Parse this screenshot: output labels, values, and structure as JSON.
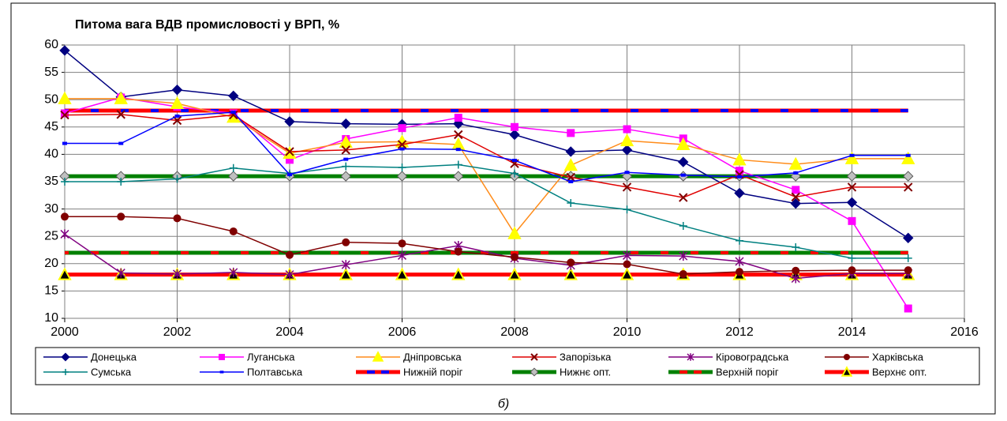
{
  "chart_data": {
    "type": "line",
    "title": "Питома вага  ВДВ  промисловості у ВРП, %",
    "caption": "б)",
    "x": [
      2000,
      2001,
      2002,
      2003,
      2004,
      2005,
      2006,
      2007,
      2008,
      2009,
      2010,
      2011,
      2012,
      2013,
      2014,
      2015
    ],
    "xlim": [
      2000,
      2016
    ],
    "xticks": [
      2000,
      2002,
      2004,
      2006,
      2008,
      2010,
      2012,
      2014,
      2016
    ],
    "ylim": [
      10,
      60
    ],
    "yticks": [
      10,
      15,
      20,
      25,
      30,
      35,
      40,
      45,
      50,
      55,
      60
    ],
    "grid": true,
    "legend": "bottom",
    "series": [
      {
        "name": "Донецька",
        "color": "#000080",
        "marker": "diamond",
        "values": [
          59,
          50.5,
          51.8,
          50.7,
          46,
          45.6,
          45.5,
          45.6,
          43.6,
          40.5,
          40.8,
          38.6,
          32.9,
          31,
          31.2,
          24.7
        ]
      },
      {
        "name": "Луганська",
        "color": "#ff00ff",
        "marker": "square",
        "values": [
          47.5,
          50.4,
          48.7,
          47.5,
          39,
          42.8,
          44.8,
          46.7,
          45,
          43.9,
          44.6,
          42.9,
          37,
          33.5,
          27.8,
          11.8
        ]
      },
      {
        "name": "Дніпровська",
        "color": "#ff8c1a",
        "marker": "triangle",
        "marker_color": "#ffff00",
        "values": [
          50.2,
          50.2,
          49.3,
          46.8,
          40.2,
          42.2,
          42.3,
          41.8,
          25.5,
          38,
          42.5,
          41.8,
          39,
          38.2,
          39.2,
          39.2
        ]
      },
      {
        "name": "Запорізька",
        "color": "#e00000",
        "marker": "x",
        "marker_color": "#800000",
        "values": [
          47.2,
          47.3,
          46.2,
          47.2,
          40.5,
          40.8,
          41.8,
          43.6,
          38.3,
          35.8,
          34,
          32.1,
          36.3,
          32.2,
          34,
          34
        ]
      },
      {
        "name": "Кіровоградська",
        "color": "#800080",
        "marker": "star",
        "values": [
          25.4,
          18.3,
          18.1,
          18.4,
          18,
          19.8,
          21.5,
          23.3,
          21,
          19.7,
          21.5,
          21.4,
          20.4,
          17.3,
          18.2,
          18.2
        ]
      },
      {
        "name": "Харківська",
        "color": "#800000",
        "marker": "circle",
        "values": [
          28.6,
          28.6,
          28.3,
          25.9,
          21.6,
          23.9,
          23.7,
          22.2,
          21.2,
          20.2,
          19.9,
          18.1,
          18.5,
          18.7,
          18.8,
          18.8
        ]
      },
      {
        "name": "Сумська",
        "color": "#008080",
        "marker": "plus",
        "values": [
          35,
          35,
          35.5,
          37.5,
          36.5,
          37.8,
          37.6,
          38.1,
          36.5,
          31.1,
          29.9,
          26.9,
          24.2,
          23,
          21,
          21
        ]
      },
      {
        "name": "Полтавська",
        "color": "#0000ff",
        "marker": "smallsquare",
        "values": [
          42,
          42,
          47,
          47.7,
          36.3,
          39.1,
          41,
          40.9,
          38.9,
          35,
          36.7,
          36.2,
          35.9,
          36.6,
          39.8,
          39.8
        ]
      },
      {
        "name": "Нижній поріг",
        "color": "#ff0000",
        "dash_color": "#0000ff",
        "line_width": 5,
        "marker": "none",
        "values": [
          48,
          48,
          48,
          48,
          48,
          48,
          48,
          48,
          48,
          48,
          48,
          48,
          48,
          48,
          48,
          48
        ]
      },
      {
        "name": "Нижнє опт.",
        "color": "#008000",
        "line_width": 5,
        "marker": "diamond",
        "marker_color": "#c0c0c0",
        "values": [
          36,
          36,
          36,
          36,
          36,
          36,
          36,
          36,
          36,
          36,
          36,
          36,
          36,
          36,
          36,
          36
        ]
      },
      {
        "name": "Верхній поріг",
        "color": "#008000",
        "dash_color": "#ff0000",
        "line_width": 5,
        "marker": "none",
        "values": [
          22,
          22,
          22,
          22,
          22,
          22,
          22,
          22,
          22,
          22,
          22,
          22,
          22,
          22,
          22,
          22
        ]
      },
      {
        "name": "Верхнє опт.",
        "color": "#ff0000",
        "line_width": 5,
        "marker": "triangle",
        "marker_color": "#ffff00",
        "marker_stroke": "#000000",
        "values": [
          18,
          18,
          18,
          18,
          18,
          18,
          18,
          18,
          18,
          18,
          18,
          18,
          18,
          18,
          18,
          18
        ]
      }
    ]
  }
}
